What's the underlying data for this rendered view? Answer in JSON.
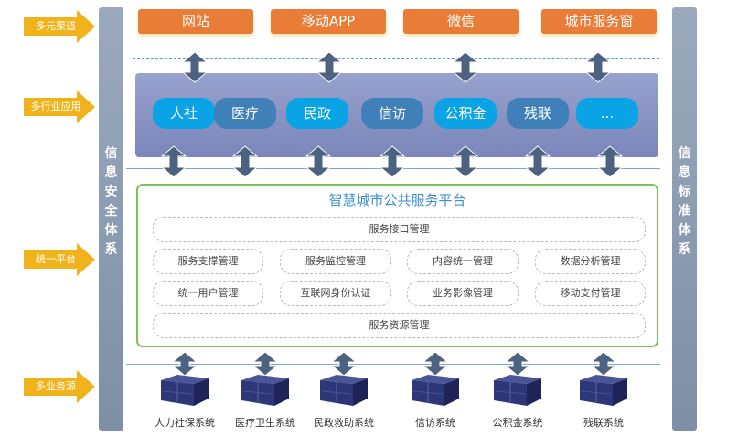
{
  "left_labels": [
    "多元渠道",
    "多行业应用",
    "统一平台",
    "多业务源"
  ],
  "left_bar": "信息安全体系",
  "right_bar": "信息标准体系",
  "channels": [
    "网站",
    "移动APP",
    "微信",
    "城市服务窗"
  ],
  "applications": [
    {
      "label": "人社",
      "color": "#0aa3e6"
    },
    {
      "label": "医疗",
      "color": "#3f80b8"
    },
    {
      "label": "民政",
      "color": "#0aa3e6"
    },
    {
      "label": "信访",
      "color": "#3f80b8"
    },
    {
      "label": "公积金",
      "color": "#0aa3e6"
    },
    {
      "label": "残联",
      "color": "#3f80b8"
    },
    {
      "label": "...",
      "color": "#0aa3e6"
    }
  ],
  "platform": {
    "title": "智慧城市公共服务平台",
    "top": "服务接口管理",
    "row1": [
      "服务支撑管理",
      "服务监控管理",
      "内容统一管理",
      "数据分析管理"
    ],
    "row2": [
      "统一用户管理",
      "互联网身份认证",
      "业务影像管理",
      "移动支付管理"
    ],
    "bottom": "服务资源管理"
  },
  "systems": [
    "人力社保系统",
    "医疗卫生系统",
    "民政救助系统",
    "信访系统",
    "公积金系统",
    "残联系统"
  ],
  "colors": {
    "arrow": "#4d6181",
    "yellow": "#f0b31c",
    "orange": "#e97c37",
    "green": "#7cc257",
    "title": "#3b8fd0"
  }
}
